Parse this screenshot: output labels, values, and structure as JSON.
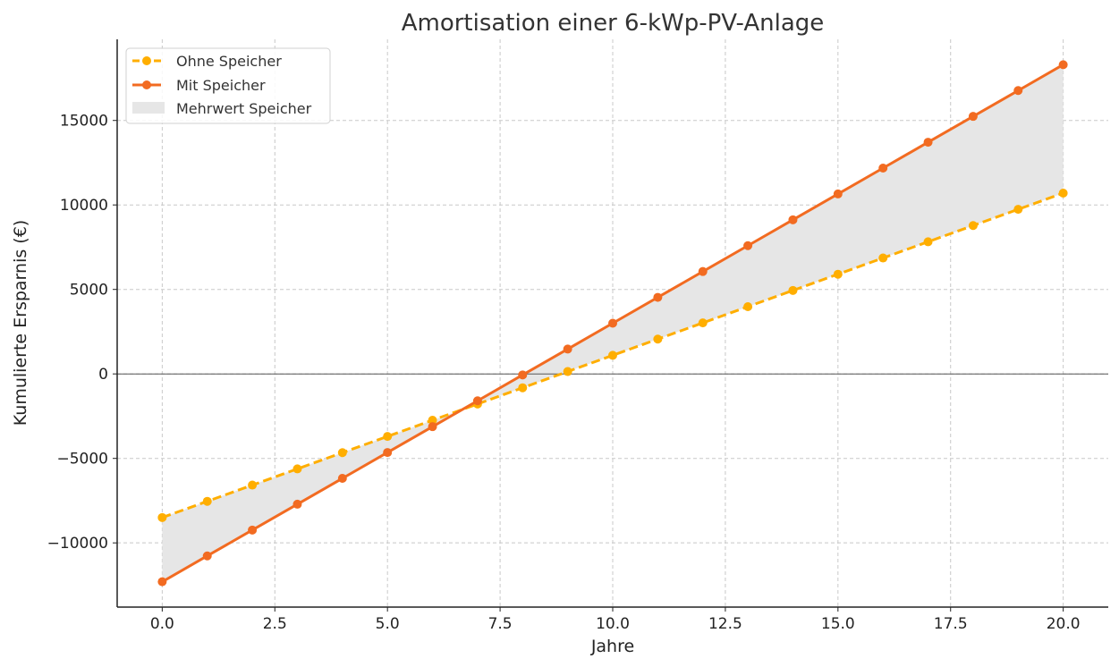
{
  "chart_data": {
    "type": "line",
    "title": "Amortisation einer 6-kWp-PV-Anlage",
    "xlabel": "Jahre",
    "ylabel": "Kumulierte Ersparnis (€)",
    "xlim": [
      -1,
      21
    ],
    "ylim": [
      -13800,
      19800
    ],
    "xticks": [
      0,
      2.5,
      5,
      7.5,
      10,
      12.5,
      15,
      17.5,
      20
    ],
    "xtick_labels": [
      "0.0",
      "2.5",
      "5.0",
      "7.5",
      "10.0",
      "12.5",
      "15.0",
      "17.5",
      "20.0"
    ],
    "yticks": [
      -10000,
      -5000,
      0,
      5000,
      10000,
      15000
    ],
    "ytick_labels": [
      "−10000",
      "−5000",
      "0",
      "5000",
      "10000",
      "15000"
    ],
    "grid": true,
    "legend_position": "top-left",
    "x": [
      0,
      1,
      2,
      3,
      4,
      5,
      6,
      7,
      8,
      9,
      10,
      11,
      12,
      13,
      14,
      15,
      16,
      17,
      18,
      19,
      20
    ],
    "series": [
      {
        "name": "Ohne Speicher",
        "color": "#FFAE00",
        "style": "dashed",
        "values": [
          -8500,
          -7540,
          -6580,
          -5620,
          -4660,
          -3700,
          -2740,
          -1780,
          -820,
          140,
          1100,
          2060,
          3020,
          3980,
          4940,
          5900,
          6860,
          7820,
          8780,
          9740,
          10700
        ]
      },
      {
        "name": "Mit Speicher",
        "color": "#F26B21",
        "style": "solid",
        "values": [
          -12300,
          -10770,
          -9240,
          -7710,
          -6180,
          -4650,
          -3120,
          -1590,
          -60,
          1470,
          3000,
          4530,
          6060,
          7590,
          9120,
          10650,
          12180,
          13710,
          15240,
          16770,
          18300
        ]
      }
    ],
    "fill_between": {
      "name": "Mehrwert Speicher",
      "color": "#E6E6E6"
    }
  }
}
